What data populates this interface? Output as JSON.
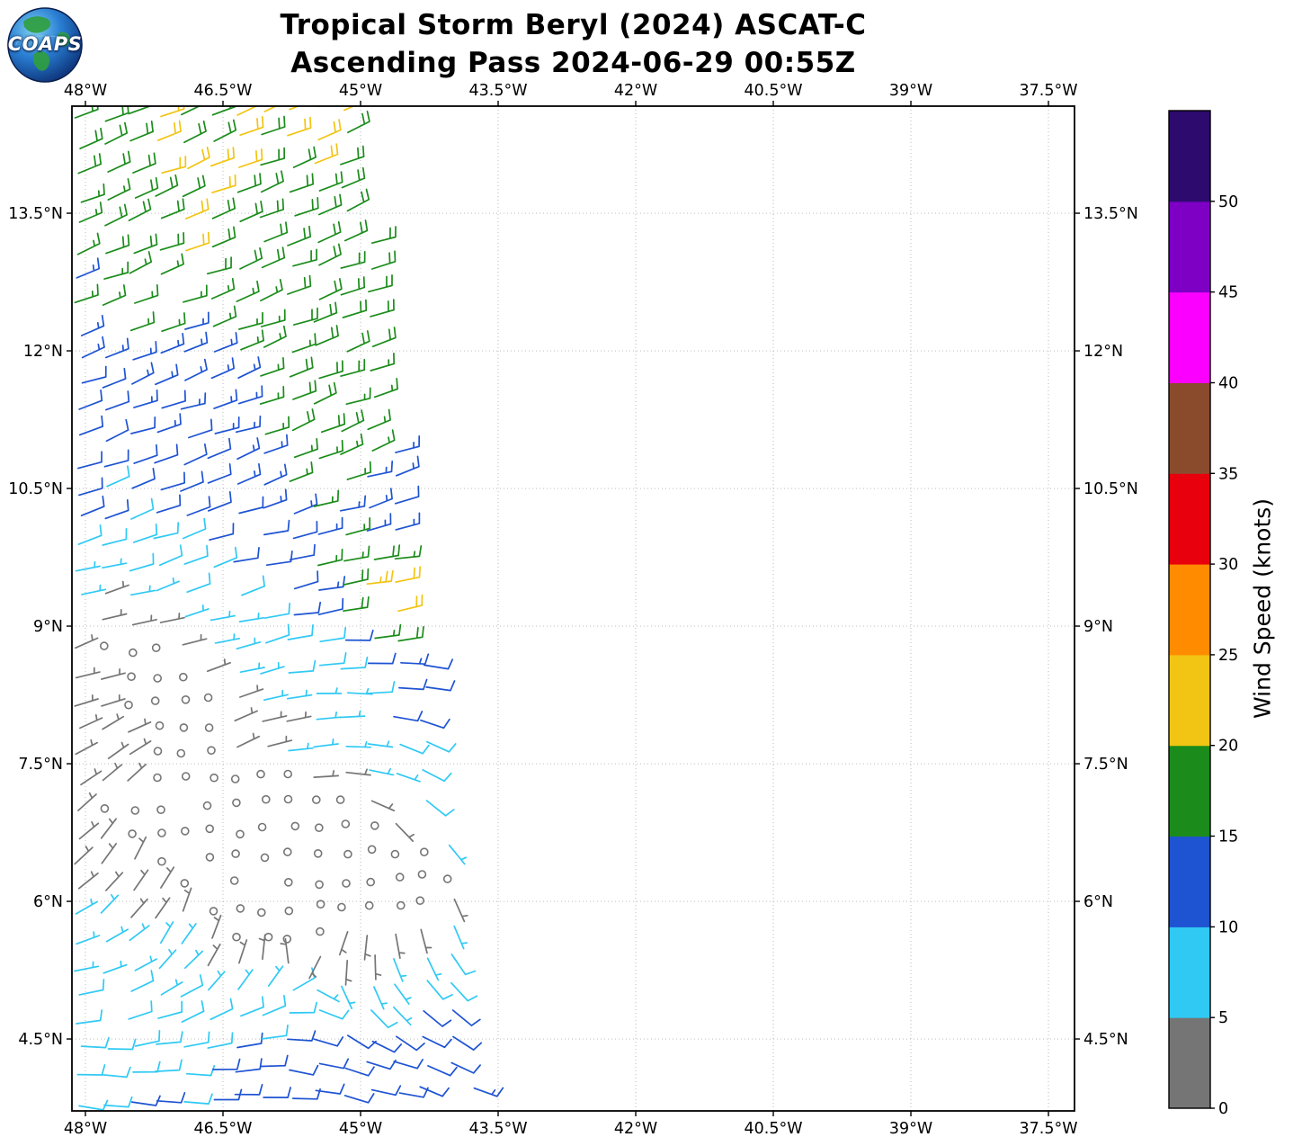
{
  "header": {
    "title_line1": "Tropical Storm Beryl (2024) ASCAT-C",
    "title_line2": "Ascending Pass 2024-06-29 00:55Z"
  },
  "logo": {
    "text": "COAPS"
  },
  "axes": {
    "lon_tick_labels": [
      "48°W",
      "46.5°W",
      "45°W",
      "43.5°W",
      "42°W",
      "40.5°W",
      "39°W",
      "37.5°W"
    ],
    "lon_tick_values": [
      -48,
      -46.5,
      -45,
      -43.5,
      -42,
      -40.5,
      -39,
      -37.5
    ],
    "lat_tick_labels": [
      "4.5°N",
      "6°N",
      "7.5°N",
      "9°N",
      "10.5°N",
      "12°N",
      "13.5°N"
    ],
    "lat_tick_values": [
      4.5,
      6,
      7.5,
      9,
      10.5,
      12,
      13.5
    ],
    "lon_range": [
      -48.147,
      -37.216
    ],
    "lat_range": [
      3.716,
      14.667
    ],
    "grid": true
  },
  "colorbar": {
    "label": "Wind Speed (knots)",
    "tick_labels": [
      "0",
      "5",
      "10",
      "15",
      "20",
      "25",
      "30",
      "35",
      "40",
      "45",
      "50"
    ],
    "levels": [
      0,
      5,
      10,
      15,
      20,
      25,
      30,
      35,
      40,
      45,
      50
    ],
    "colors": [
      "#757575",
      "#30C9F4",
      "#1E53D2",
      "#1B8C1B",
      "#F2C413",
      "#FF8C00",
      "#E8000D",
      "#8A4B2D",
      "#FB00FF",
      "#7D00C4",
      "#2D0A6E"
    ]
  },
  "chart_data": {
    "type": "wind_barb_map",
    "title": "Tropical Storm Beryl (2024) ASCAT-C",
    "subtitle": "Ascending Pass 2024-06-29 00:55Z",
    "storm_name": "Tropical Storm Beryl",
    "instrument": "ASCAT-C",
    "pass_type": "Ascending",
    "valid_time": "2024-06-29 00:55Z",
    "units": "knots",
    "lon_range": [
      -48.147,
      -37.216
    ],
    "lat_range": [
      3.716,
      14.667
    ],
    "speed_levels_knots": [
      0,
      5,
      10,
      15,
      20,
      25,
      30,
      35,
      40,
      45,
      50
    ],
    "calm_symbol_threshold_kt": 2.5,
    "barb_convention": {
      "half_barb_kt": 5,
      "full_barb_kt": 10,
      "calm": "open circle"
    },
    "swath_right_edge": {
      "lon_ref": -45.05,
      "slope_per_deg": 0.13
    },
    "wind_field_model": {
      "description": "Approximate ASCAT wind field read from the plot: ENE trades 15-25 kt north of 12N, weakening southward; broad calm area (open circles) around the developing circulation near 45.5W 6.4N; 5-10 kt flow south of 6N; local 20-25 kt patch near 44.9W 9.3N.",
      "grid_spacing_deg": 0.29,
      "row_tilt_deg_per_deg": 0.04,
      "lon_gradient_knots_per_deg": 0.7,
      "ambient_speed_profile": [
        {
          "lat": 3.9,
          "knots": 9.5
        },
        {
          "lat": 5.0,
          "knots": 7.2
        },
        {
          "lat": 6.0,
          "knots": 4.2
        },
        {
          "lat": 6.6,
          "knots": 3.0
        },
        {
          "lat": 8.0,
          "knots": 4.5
        },
        {
          "lat": 10.0,
          "knots": 9.0
        },
        {
          "lat": 12.0,
          "knots": 13.5
        },
        {
          "lat": 14.65,
          "knots": 19.3
        }
      ],
      "ambient_dir_profile": [
        {
          "lat": 3.9,
          "dir": 97
        },
        {
          "lat": 5.5,
          "dir": 93
        },
        {
          "lat": 7.0,
          "dir": 85
        },
        {
          "lat": 9.0,
          "dir": 76
        },
        {
          "lat": 11.0,
          "dir": 70
        },
        {
          "lat": 14.65,
          "dir": 68
        }
      ],
      "vortex": {
        "lon": -45.5,
        "lat": 6.45,
        "peak_knots": 6.5,
        "peak_radius_deg": 1.0,
        "width_deg": 1.8
      },
      "enhanced_spots": [
        {
          "lon": -46.9,
          "lat": 13.3,
          "amp": 3.0,
          "r": 0.8
        },
        {
          "lon": -45.4,
          "lat": 12.25,
          "amp": 4.0,
          "r": 0.6
        },
        {
          "lon": -45.7,
          "lat": 11.3,
          "amp": 3.5,
          "r": 0.4
        },
        {
          "lon": -45.55,
          "lat": 10.8,
          "amp": 4.5,
          "r": 0.75
        },
        {
          "lon": -45.2,
          "lat": 9.5,
          "amp": 4.0,
          "r": 0.6
        },
        {
          "lon": -44.85,
          "lat": 9.35,
          "amp": 11.0,
          "r": 0.45
        },
        {
          "lon": -44.6,
          "lat": 8.85,
          "amp": 7.0,
          "r": 0.35
        },
        {
          "lon": -44.35,
          "lat": 8.0,
          "amp": 4.0,
          "r": 0.5
        },
        {
          "lon": -44.0,
          "lat": 6.95,
          "amp": 5.0,
          "r": 0.45
        }
      ],
      "calm_spots": [
        {
          "lon": -47.65,
          "lat": 8.85,
          "amp": 4.5,
          "r": 0.65
        },
        {
          "lon": -47.0,
          "lat": 8.3,
          "amp": 4.0,
          "r": 0.6
        },
        {
          "lon": -46.75,
          "lat": 7.35,
          "amp": 4.0,
          "r": 0.65
        },
        {
          "lon": -47.05,
          "lat": 6.95,
          "amp": 3.0,
          "r": 0.45
        },
        {
          "lon": -46.1,
          "lat": 6.8,
          "amp": 3.5,
          "r": 0.6
        },
        {
          "lon": -45.9,
          "lat": 6.6,
          "amp": 4.0,
          "r": 0.6
        },
        {
          "lon": -45.45,
          "lat": 6.45,
          "amp": 4.5,
          "r": 0.65
        },
        {
          "lon": -45.05,
          "lat": 6.25,
          "amp": 4.0,
          "r": 0.6
        },
        {
          "lon": -44.6,
          "lat": 6.3,
          "amp": 3.5,
          "r": 0.55
        },
        {
          "lon": -44.0,
          "lat": 6.45,
          "amp": 3.0,
          "r": 0.5
        },
        {
          "lon": -46.55,
          "lat": 5.75,
          "amp": 3.5,
          "r": 0.5
        },
        {
          "lon": -45.85,
          "lat": 5.55,
          "amp": 3.5,
          "r": 0.45
        },
        {
          "lon": -45.15,
          "lat": 5.35,
          "amp": 3.5,
          "r": 0.45
        },
        {
          "lon": -44.6,
          "lat": 5.15,
          "amp": 3.0,
          "r": 0.4
        }
      ]
    },
    "representative_barbs": [
      {
        "lon": -47.5,
        "lat": 14.3,
        "speed_kt": 17,
        "dir_from_deg": 70
      },
      {
        "lon": -46.2,
        "lat": 14.0,
        "speed_kt": 21,
        "dir_from_deg": 70
      },
      {
        "lon": -45.6,
        "lat": 12.3,
        "speed_kt": 20,
        "dir_from_deg": 72
      },
      {
        "lon": -47.8,
        "lat": 11.6,
        "speed_kt": 12,
        "dir_from_deg": 70
      },
      {
        "lon": -46.0,
        "lat": 10.8,
        "speed_kt": 16,
        "dir_from_deg": 72
      },
      {
        "lon": -44.9,
        "lat": 9.35,
        "speed_kt": 21,
        "dir_from_deg": 62
      },
      {
        "lon": -47.3,
        "lat": 8.8,
        "speed_kt": 4,
        "dir_from_deg": 55
      },
      {
        "lon": -44.4,
        "lat": 8.0,
        "speed_kt": 11,
        "dir_from_deg": 120
      },
      {
        "lon": -45.4,
        "lat": 6.5,
        "speed_kt": 2,
        "calm": true
      },
      {
        "lon": -46.8,
        "lat": 7.3,
        "speed_kt": 2,
        "calm": true
      },
      {
        "lon": -44.1,
        "lat": 6.9,
        "speed_kt": 11,
        "dir_from_deg": 160
      },
      {
        "lon": -46.5,
        "lat": 5.0,
        "speed_kt": 8,
        "dir_from_deg": 95
      },
      {
        "lon": -44.5,
        "lat": 4.5,
        "speed_kt": 8,
        "dir_from_deg": 100
      },
      {
        "lon": -47.8,
        "lat": 4.2,
        "speed_kt": 10,
        "dir_from_deg": 97
      }
    ]
  }
}
